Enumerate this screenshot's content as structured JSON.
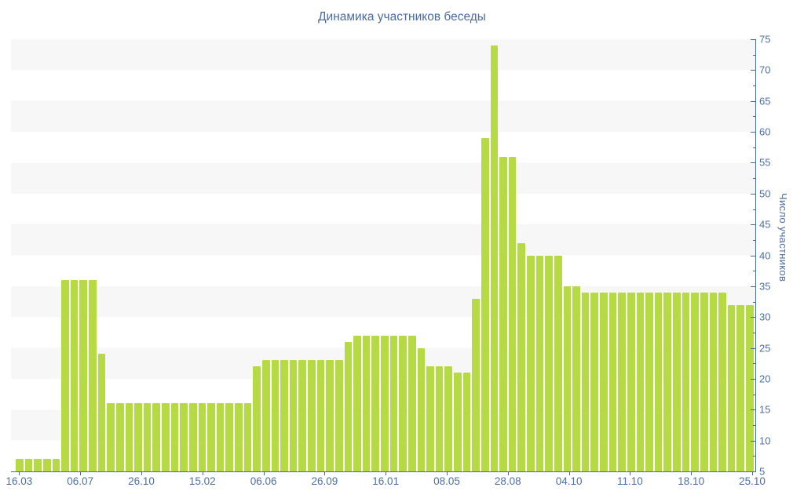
{
  "title": "Динамика участников беседы",
  "colors": {
    "bar": "#b5da43",
    "axis_line": "#4a6a9e",
    "tick_label": "#4d6fa5",
    "title_text": "#4a6b9e",
    "stripe": "#f7f7f7",
    "background": "#ffffff"
  },
  "chart_data": {
    "type": "bar",
    "title": "Динамика участников беседы",
    "xlabel": "",
    "ylabel": "Число участников",
    "ylim": [
      5,
      75
    ],
    "y_tick_step": 5,
    "y_minor_tick_step": 2.5,
    "y_tick_labels": [
      "5",
      "10",
      "15",
      "20",
      "25",
      "30",
      "35",
      "40",
      "45",
      "50",
      "55",
      "60",
      "65",
      "70",
      "75"
    ],
    "grid": "horizontal-stripes",
    "legend": "none",
    "x_tick_labels": [
      "16.03",
      "06.07",
      "26.10",
      "15.02",
      "06.06",
      "26.09",
      "16.01",
      "08.05",
      "28.08",
      "04.10",
      "11.10",
      "18.10",
      "25.10"
    ],
    "values": [
      7,
      7,
      7,
      7,
      7,
      36,
      36,
      36,
      36,
      24,
      16,
      16,
      16,
      16,
      16,
      16,
      16,
      16,
      16,
      16,
      16,
      16,
      16,
      16,
      16,
      16,
      22,
      23,
      23,
      23,
      23,
      23,
      23,
      23,
      23,
      23,
      26,
      27,
      27,
      27,
      27,
      27,
      27,
      27,
      25,
      22,
      22,
      22,
      21,
      21,
      33,
      59,
      74,
      56,
      56,
      42,
      40,
      40,
      40,
      40,
      35,
      35,
      34,
      34,
      34,
      34,
      34,
      34,
      34,
      34,
      34,
      34,
      34,
      34,
      34,
      34,
      34,
      34,
      32,
      32,
      32
    ]
  }
}
